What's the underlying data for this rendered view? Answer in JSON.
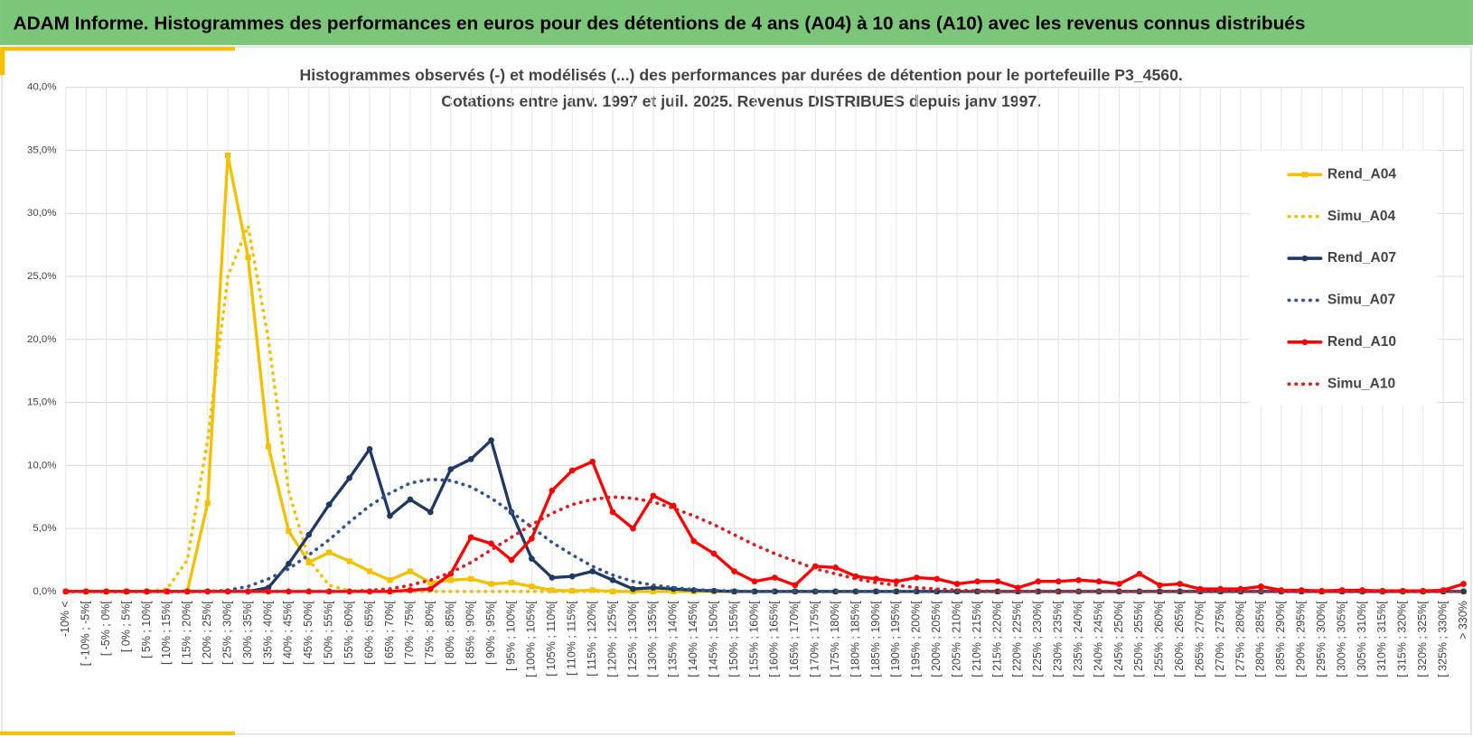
{
  "banner": "ADAM Informe. Histogrammes des performances en euros pour des détentions de 4 ans (A04) à 10 ans (A10) avec les revenus connus distribués",
  "chart_data": {
    "type": "line",
    "title": "Histogrammes observés (-) et modélisés (...) des performances par durées de détention pour le portefeuille P3_4560.",
    "subtitle": "Cotations entre janv. 1997 et juil. 2025. Revenus DISTRIBUES depuis janv 1997.",
    "categories": [
      "-10% <",
      "[ -10% ; -5%[",
      "[ -5% ; 0%[",
      "[ 0% ; 5%[",
      "[ 5% ; 10%[",
      "[ 10% ; 15%[",
      "[ 15% ; 20%[",
      "[ 20% ; 25%[",
      "[ 25% ; 30%[",
      "[ 30% ; 35%[",
      "[ 35% ; 40%[",
      "[ 40% ; 45%[",
      "[ 45% ; 50%[",
      "[ 50% ; 55%[",
      "[ 55% ; 60%[",
      "[ 60% ; 65%[",
      "[ 65% ; 70%[",
      "[ 70% ; 75%[",
      "[ 75% ; 80%[",
      "[ 80% ; 85%[",
      "[ 85% ; 90%[",
      "[ 90% ; 95%[",
      "[ 95% ; 100%[",
      "[ 100% ; 105%[",
      "[ 105% ; 110%[",
      "[ 110% ; 115%[",
      "[ 115% ; 120%[",
      "[ 120% ; 125%[",
      "[ 125% ; 130%[",
      "[ 130% ; 135%[",
      "[ 135% ; 140%[",
      "[ 140% ; 145%[",
      "[ 145% ; 150%[",
      "[ 150% ; 155%[",
      "[ 155% ; 160%[",
      "[ 160% ; 165%[",
      "[ 165% ; 170%[",
      "[ 170% ; 175%[",
      "[ 175% ; 180%[",
      "[ 180% ; 185%[",
      "[ 185% ; 190%[",
      "[ 190% ; 195%[",
      "[ 195% ; 200%[",
      "[ 200% ; 205%[",
      "[ 205% ; 210%[",
      "[ 210% ; 215%[",
      "[ 215% ; 220%[",
      "[ 220% ; 225%[",
      "[ 225% ; 230%[",
      "[ 230% ; 235%[",
      "[ 235% ; 240%[",
      "[ 240% ; 245%[",
      "[ 245% ; 250%[",
      "[ 250% ; 255%[",
      "[ 255% ; 260%[",
      "[ 260% ; 265%[",
      "[ 265% ; 270%[",
      "[ 270% ; 275%[",
      "[ 275% ; 280%[",
      "[ 280% ; 285%[",
      "[ 285% ; 290%[",
      "[ 290% ; 295%[",
      "[ 295% ; 300%[",
      "[ 300% ; 305%[",
      "[ 305% ; 310%[",
      "[ 310% ; 315%[",
      "[ 315% ; 320%[",
      "[ 320% ; 325%[",
      "[ 325% ; 330%[",
      "> 330%"
    ],
    "series": [
      {
        "name": "Rend_A04",
        "color": "#f5c000",
        "style": "solid",
        "marker": "square",
        "values": [
          0,
          0,
          0,
          0,
          0,
          0,
          0,
          7.0,
          34.6,
          26.5,
          11.5,
          4.8,
          2.3,
          3.1,
          2.4,
          1.6,
          0.9,
          1.6,
          0.7,
          0.9,
          1.0,
          0.6,
          0.7,
          0.4,
          0.1,
          0.05,
          0.1,
          0,
          0,
          0,
          0,
          0,
          0,
          0,
          0,
          0,
          0,
          0,
          0,
          0,
          0,
          0,
          0,
          0,
          0,
          0,
          0,
          0,
          0,
          0,
          0,
          0,
          0,
          0,
          0,
          0,
          0,
          0,
          0,
          0,
          0,
          0,
          0,
          0,
          0,
          0,
          0,
          0,
          0,
          0
        ]
      },
      {
        "name": "Simu_A04",
        "color": "#f5c000",
        "style": "dotted",
        "values": [
          0,
          0,
          0,
          0,
          0,
          0.2,
          2.5,
          12,
          25,
          29,
          20,
          8,
          2.5,
          0.5,
          0.05,
          0,
          0,
          0,
          0,
          0,
          0,
          0,
          0,
          0,
          0,
          0,
          0,
          0,
          0,
          0,
          0,
          0,
          0,
          0,
          0,
          0,
          0,
          0,
          0,
          0,
          0,
          0,
          0,
          0,
          0,
          0,
          0,
          0,
          0,
          0,
          0,
          0,
          0,
          0,
          0,
          0,
          0,
          0,
          0,
          0,
          0,
          0,
          0,
          0,
          0,
          0,
          0,
          0,
          0,
          0
        ]
      },
      {
        "name": "Rend_A07",
        "color": "#1f3864",
        "style": "solid",
        "marker": "circle",
        "values": [
          0,
          0,
          0,
          0,
          0,
          0,
          0,
          0,
          0,
          0,
          0.3,
          2.2,
          4.5,
          6.9,
          9.0,
          11.3,
          6.0,
          7.3,
          6.3,
          9.7,
          10.5,
          12.0,
          6.3,
          2.6,
          1.1,
          1.2,
          1.6,
          0.9,
          0.2,
          0.3,
          0.2,
          0.1,
          0.05,
          0,
          0,
          0,
          0,
          0,
          0,
          0,
          0,
          0,
          0,
          0,
          0,
          0,
          0,
          0,
          0,
          0,
          0,
          0,
          0,
          0,
          0,
          0,
          0,
          0,
          0,
          0,
          0,
          0,
          0,
          0,
          0,
          0,
          0,
          0,
          0,
          0
        ]
      },
      {
        "name": "Simu_A07",
        "color": "#2f5496",
        "style": "dotted",
        "values": [
          0,
          0,
          0,
          0,
          0,
          0,
          0,
          0,
          0.1,
          0.4,
          1.0,
          1.8,
          2.9,
          4.1,
          5.5,
          6.8,
          7.8,
          8.6,
          8.9,
          8.8,
          8.3,
          7.4,
          6.3,
          5.1,
          3.9,
          2.9,
          2.0,
          1.3,
          0.8,
          0.5,
          0.3,
          0.15,
          0.08,
          0.04,
          0,
          0,
          0,
          0,
          0,
          0,
          0,
          0,
          0,
          0,
          0,
          0,
          0,
          0,
          0,
          0,
          0,
          0,
          0,
          0,
          0,
          0,
          0,
          0,
          0,
          0,
          0,
          0,
          0,
          0,
          0,
          0,
          0,
          0,
          0,
          0
        ]
      },
      {
        "name": "Rend_A10",
        "color": "#ff0000",
        "style": "solid",
        "marker": "circle",
        "values": [
          0,
          0,
          0,
          0,
          0,
          0,
          0,
          0,
          0,
          0,
          0,
          0,
          0,
          0,
          0,
          0,
          0,
          0.1,
          0.2,
          1.4,
          4.3,
          3.8,
          2.5,
          4.2,
          8.0,
          9.6,
          10.3,
          6.3,
          5.0,
          7.6,
          6.8,
          4.0,
          3.0,
          1.6,
          0.8,
          1.1,
          0.5,
          2.0,
          1.9,
          1.2,
          1.0,
          0.8,
          1.1,
          1.0,
          0.6,
          0.8,
          0.8,
          0.3,
          0.8,
          0.8,
          0.9,
          0.8,
          0.6,
          1.4,
          0.5,
          0.6,
          0.2,
          0.2,
          0.2,
          0.4,
          0.1,
          0.1,
          0.05,
          0.1,
          0.1,
          0.05,
          0.05,
          0.05,
          0.1,
          0.6
        ]
      },
      {
        "name": "Simu_A10",
        "color": "#e31a1c",
        "style": "dotted",
        "values": [
          0,
          0,
          0,
          0,
          0,
          0,
          0,
          0,
          0,
          0,
          0,
          0,
          0,
          0,
          0,
          0.1,
          0.2,
          0.5,
          0.9,
          1.5,
          2.3,
          3.3,
          4.3,
          5.3,
          6.2,
          6.9,
          7.3,
          7.5,
          7.4,
          7.1,
          6.6,
          6.0,
          5.3,
          4.5,
          3.7,
          3.0,
          2.4,
          1.8,
          1.4,
          1.0,
          0.7,
          0.5,
          0.3,
          0.2,
          0.1,
          0.05,
          0,
          0,
          0,
          0,
          0,
          0,
          0,
          0,
          0,
          0,
          0,
          0,
          0,
          0,
          0,
          0,
          0,
          0,
          0,
          0,
          0,
          0,
          0,
          0
        ]
      }
    ],
    "ylim": [
      0,
      40
    ],
    "yticks": [
      {
        "value": 0,
        "label": "0,0%"
      },
      {
        "value": 5,
        "label": "5,0%"
      },
      {
        "value": 10,
        "label": "10,0%"
      },
      {
        "value": 15,
        "label": "15,0%"
      },
      {
        "value": 20,
        "label": "20,0%"
      },
      {
        "value": 25,
        "label": "25,0%"
      },
      {
        "value": 30,
        "label": "30,0%"
      },
      {
        "value": 35,
        "label": "35,0%"
      },
      {
        "value": 40,
        "label": "40,0%"
      }
    ],
    "grid": true,
    "legend": "right"
  }
}
